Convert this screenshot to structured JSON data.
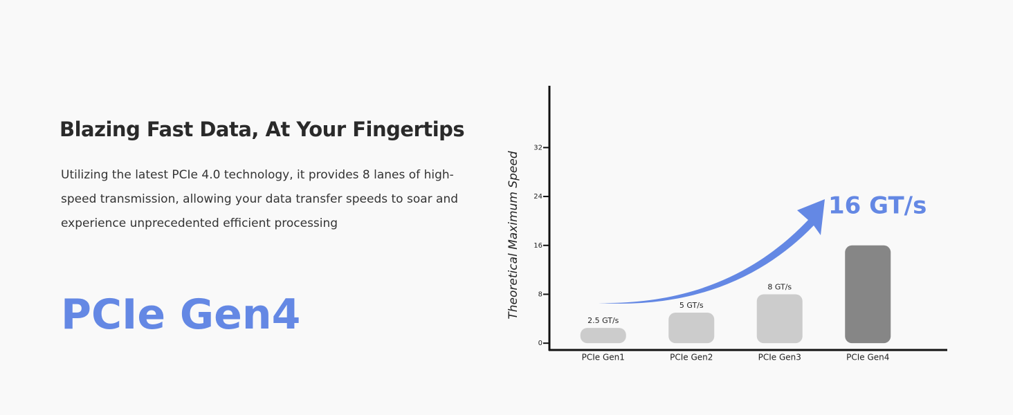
{
  "heading": "Blazing Fast Data, At Your Fingertips",
  "body": "Utilizing the latest PCIe 4.0 technology, it provides 8 lanes of high-speed transmission, allowing your data transfer speeds to soar and experience unprecedented efficient processing",
  "product": "PCIe Gen4",
  "chart_data": {
    "type": "bar",
    "y_label": "Theoretical Maximum Speed",
    "categories": [
      "PCIe Gen1",
      "PCIe Gen2",
      "PCIe Gen3",
      "PCIe Gen4"
    ],
    "values": [
      2.5,
      5,
      8,
      16
    ],
    "value_labels": [
      "2.5 GT/s",
      "5 GT/s",
      "8 GT/s",
      "16 GT/s"
    ],
    "colors": [
      "#cccccc",
      "#cccccc",
      "#cccccc",
      "#868686"
    ],
    "ylim": [
      -1,
      42
    ],
    "yticks": [
      0,
      8,
      16,
      24,
      32
    ]
  }
}
